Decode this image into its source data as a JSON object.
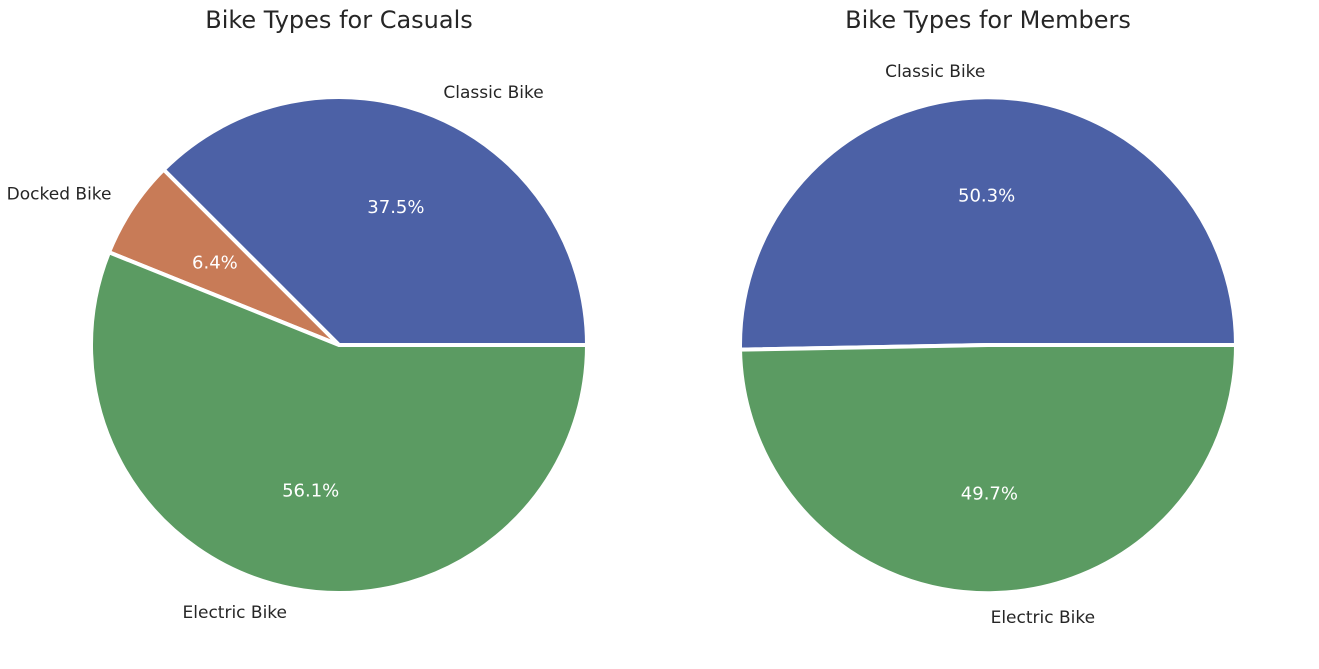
{
  "chart_data": [
    {
      "type": "pie",
      "title": "Bike Types for Casuals",
      "categories": [
        "Classic Bike",
        "Docked Bike",
        "Electric Bike"
      ],
      "values": [
        37.5,
        6.4,
        56.1
      ],
      "value_labels": [
        "37.5%",
        "6.4%",
        "56.1%"
      ],
      "colors": [
        "#4c61a6",
        "#c87b57",
        "#5b9b62"
      ],
      "start_angle_deg": 0,
      "direction": "counterclockwise",
      "legend": "none"
    },
    {
      "type": "pie",
      "title": "Bike Types for Members",
      "categories": [
        "Classic Bike",
        "Electric Bike"
      ],
      "values": [
        50.3,
        49.7
      ],
      "value_labels": [
        "50.3%",
        "49.7%"
      ],
      "colors": [
        "#4c61a6",
        "#5b9b62"
      ],
      "start_angle_deg": 0,
      "direction": "counterclockwise",
      "legend": "none"
    }
  ]
}
